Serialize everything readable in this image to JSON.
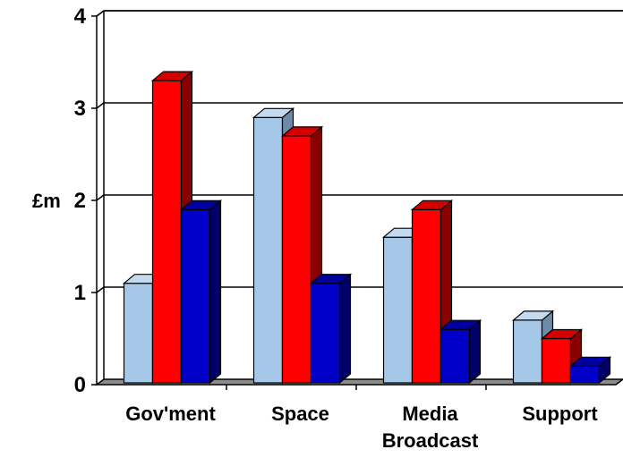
{
  "chart_data": {
    "type": "bar",
    "title": "",
    "xlabel": "",
    "ylabel": "£m",
    "ylim": [
      0,
      4
    ],
    "y_ticks": [
      "0",
      "1",
      "2",
      "3",
      "4"
    ],
    "grid": true,
    "style": "3d-clustered-column",
    "categories": [
      [
        "Gov'ment"
      ],
      [
        "Space"
      ],
      [
        "Media",
        "Broadcast"
      ],
      [
        "Support"
      ]
    ],
    "series": [
      {
        "values": [
          1.1,
          2.9,
          1.6,
          0.7
        ],
        "color": "#a6c8e8",
        "side": "#6f8aa6",
        "top": "#c4daef"
      },
      {
        "values": [
          3.3,
          2.7,
          1.9,
          0.5
        ],
        "color": "#ff0000",
        "side": "#8a0000",
        "top": "#d40000"
      },
      {
        "values": [
          1.9,
          1.1,
          0.6,
          0.2
        ],
        "color": "#0000c8",
        "side": "#00006a",
        "top": "#0000a0"
      }
    ],
    "floor_color": "#8c8c8c"
  }
}
